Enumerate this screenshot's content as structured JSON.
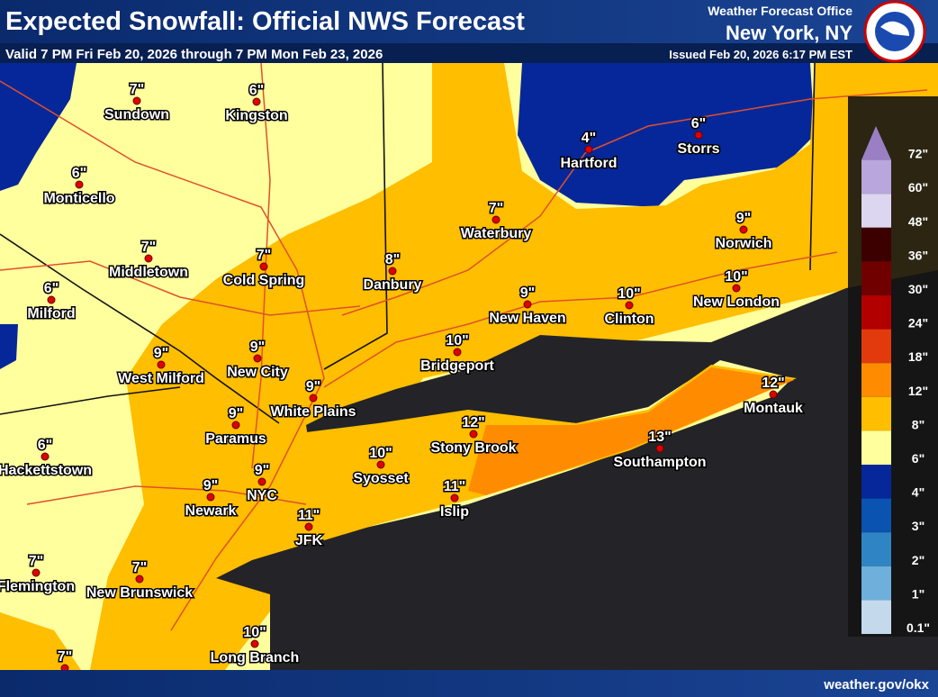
{
  "header": {
    "title": "Expected Snowfall: Official NWS Forecast",
    "subtitle": "Valid 7 PM Fri Feb 20, 2026 through 7 PM Mon Feb 23, 2026",
    "office": "Weather Forecast Office",
    "location": "New York, NY",
    "issued": "Issued Feb 20, 2026 6:17 PM EST"
  },
  "cities": [
    {
      "name": "Sundown",
      "amount": "7\""
    },
    {
      "name": "Kingston",
      "amount": "6\""
    },
    {
      "name": "Monticello",
      "amount": "6\""
    },
    {
      "name": "Middletown",
      "amount": "7\""
    },
    {
      "name": "Milford",
      "amount": "6\""
    },
    {
      "name": "Cold Spring",
      "amount": "7\""
    },
    {
      "name": "Danbury",
      "amount": "8\""
    },
    {
      "name": "Waterbury",
      "amount": "7\""
    },
    {
      "name": "Hartford",
      "amount": "4\""
    },
    {
      "name": "Storrs",
      "amount": "6\""
    },
    {
      "name": "Norwich",
      "amount": "9\""
    },
    {
      "name": "New London",
      "amount": "10\""
    },
    {
      "name": "Clinton",
      "amount": "10\""
    },
    {
      "name": "New Haven",
      "amount": "9\""
    },
    {
      "name": "Bridgeport",
      "amount": "10\""
    },
    {
      "name": "New City",
      "amount": "9\""
    },
    {
      "name": "West Milford",
      "amount": "9\""
    },
    {
      "name": "White Plains",
      "amount": "9\""
    },
    {
      "name": "Paramus",
      "amount": "9\""
    },
    {
      "name": "Stony Brook",
      "amount": "12\""
    },
    {
      "name": "Syosset",
      "amount": "10\""
    },
    {
      "name": "Montauk",
      "amount": "12\""
    },
    {
      "name": "Southampton",
      "amount": "13\""
    },
    {
      "name": "Islip",
      "amount": "11\""
    },
    {
      "name": "NYC",
      "amount": "9\""
    },
    {
      "name": "Newark",
      "amount": "9\""
    },
    {
      "name": "JFK",
      "amount": "11\""
    },
    {
      "name": "Hackettstown",
      "amount": "6\""
    },
    {
      "name": "Flemington",
      "amount": "7\""
    },
    {
      "name": "New Brunswick",
      "amount": "7\""
    },
    {
      "name": "Long Branch",
      "amount": "10\""
    },
    {
      "amount": "7\""
    }
  ],
  "legend": [
    {
      "label": "72\"",
      "color": "#9a7fc4"
    },
    {
      "label": "60\"",
      "color": "#b8a6dc"
    },
    {
      "label": "48\"",
      "color": "#dcd6f0"
    },
    {
      "label": "36\"",
      "color": "#3c0000"
    },
    {
      "label": "30\"",
      "color": "#700000"
    },
    {
      "label": "24\"",
      "color": "#b20000"
    },
    {
      "label": "18\"",
      "color": "#e23a0c"
    },
    {
      "label": "12\"",
      "color": "#ff8c00"
    },
    {
      "label": "8\"",
      "color": "#ffbe00"
    },
    {
      "label": "6\"",
      "color": "#ffff9e"
    },
    {
      "label": "4\"",
      "color": "#06279a"
    },
    {
      "label": "3\"",
      "color": "#0a53b0"
    },
    {
      "label": "2\"",
      "color": "#2f84c4"
    },
    {
      "label": "1\"",
      "color": "#6eafdc"
    },
    {
      "label": "0.1\"",
      "color": "#c4daec"
    }
  ],
  "footer": {
    "url": "weather.gov/okx"
  }
}
